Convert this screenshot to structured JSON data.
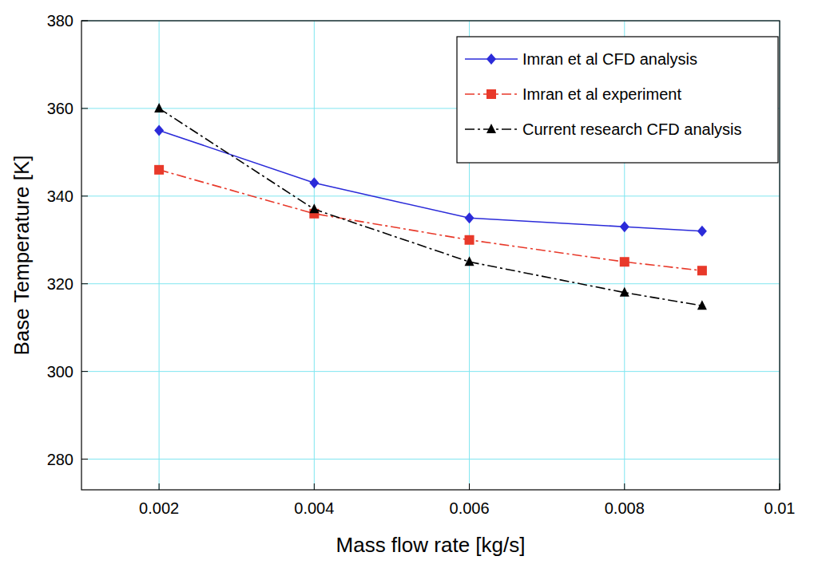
{
  "chart_data": {
    "type": "line",
    "x_label": "Mass flow rate [kg/s]",
    "y_label": "Base Temperature [K]",
    "x": [
      0.002,
      0.004,
      0.006,
      0.008,
      0.009
    ],
    "series": [
      {
        "name": "Imran et al CFD analysis",
        "color": "#2b2bd9",
        "marker": "diamond",
        "line_style": "solid",
        "values": [
          355,
          343,
          335,
          333,
          332
        ]
      },
      {
        "name": "Imran et al experiment",
        "color": "#e8392a",
        "marker": "square",
        "line_style": "dashdot",
        "values": [
          346,
          336,
          330,
          325,
          323
        ]
      },
      {
        "name": "Current research CFD analysis",
        "color": "#000000",
        "marker": "triangle",
        "line_style": "dashdot",
        "values": [
          360,
          337,
          325,
          318,
          315
        ]
      }
    ],
    "xlim": [
      0.001,
      0.01
    ],
    "xticks": [
      0.002,
      0.004,
      0.006,
      0.008,
      0.01
    ],
    "ylim": [
      273,
      380
    ],
    "yticks": [
      280,
      300,
      320,
      340,
      360,
      380
    ],
    "grid": true,
    "legend": "upper right"
  }
}
